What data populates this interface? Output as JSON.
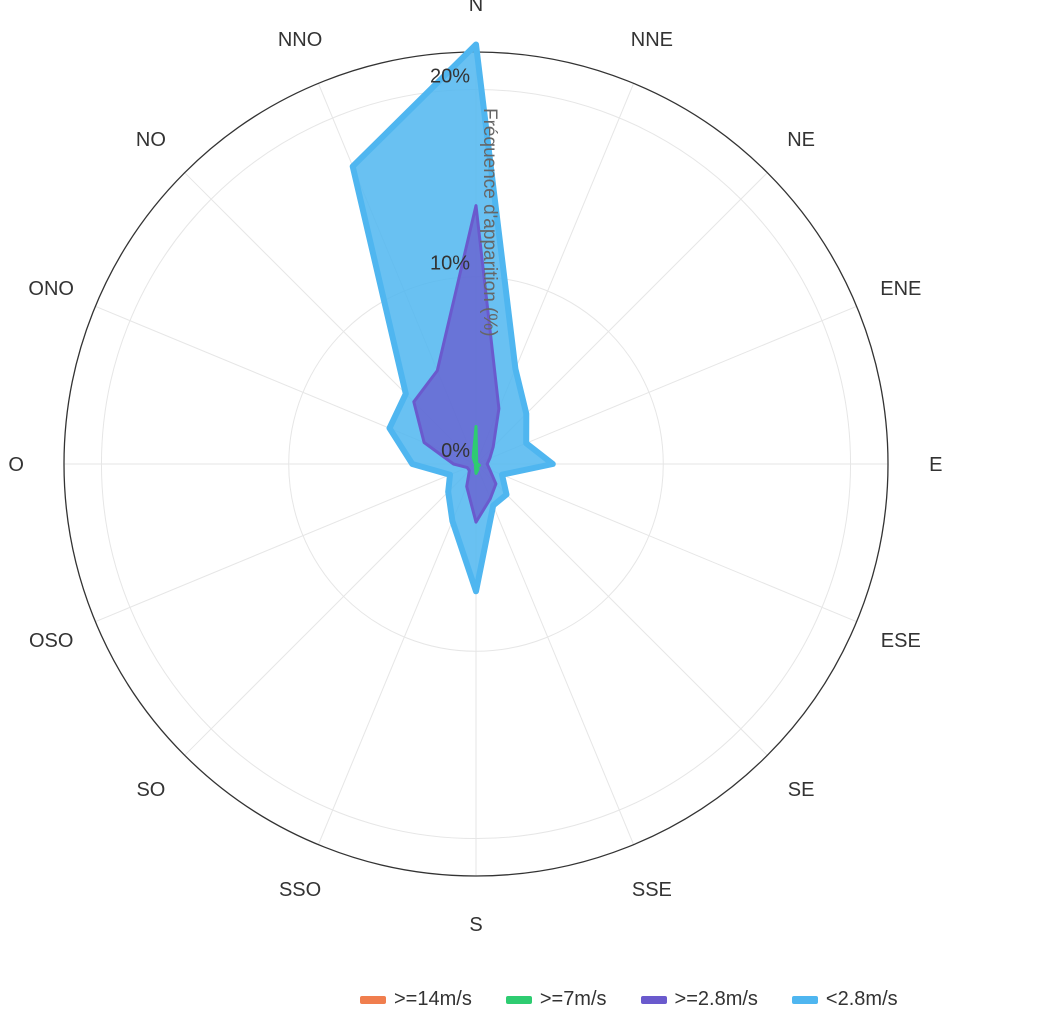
{
  "chart_data": {
    "type": "area",
    "subtype": "polar-wind-rose",
    "directions": [
      "N",
      "NNE",
      "NE",
      "ENE",
      "E",
      "ESE",
      "SE",
      "SSE",
      "S",
      "SSO",
      "SO",
      "OSO",
      "O",
      "ONO",
      "NO",
      "NNO"
    ],
    "radial_axis": {
      "title": "Fréquence d'apparition (%)",
      "range": [
        0,
        22
      ],
      "ticks": [
        0,
        10,
        20
      ],
      "tick_labels": [
        "0%",
        "10%",
        "20%"
      ]
    },
    "grid": true,
    "legend_position": "bottom-right",
    "series": [
      {
        "name": ">=14m/s",
        "color": "#f07e4e",
        "values": [
          0,
          0,
          0,
          0,
          0,
          0,
          0,
          0,
          0,
          0,
          0,
          0,
          0,
          0,
          0,
          0
        ]
      },
      {
        "name": ">=7m/s",
        "color": "#2ecc71",
        "values": [
          2.0,
          0.1,
          0,
          0,
          0.1,
          0.2,
          0.1,
          0.3,
          0.5,
          0.1,
          0,
          0,
          0,
          0,
          0.1,
          0.4
        ]
      },
      {
        "name": ">=2.8m/s",
        "color": "#6a5acd",
        "values": [
          13.8,
          3.2,
          1.3,
          0.8,
          0.6,
          0.8,
          1.5,
          2.0,
          3.1,
          1.3,
          0.5,
          0.5,
          1.2,
          3.0,
          4.7,
          5.4
        ]
      },
      {
        "name": "<2.8m/s",
        "color": "#4fb6f0",
        "values": [
          22.4,
          5.5,
          3.8,
          2.9,
          4.1,
          1.5,
          2.3,
          2.4,
          6.8,
          3.3,
          2.1,
          1.5,
          3.4,
          5.0,
          5.3,
          17.2
        ]
      }
    ]
  }
}
